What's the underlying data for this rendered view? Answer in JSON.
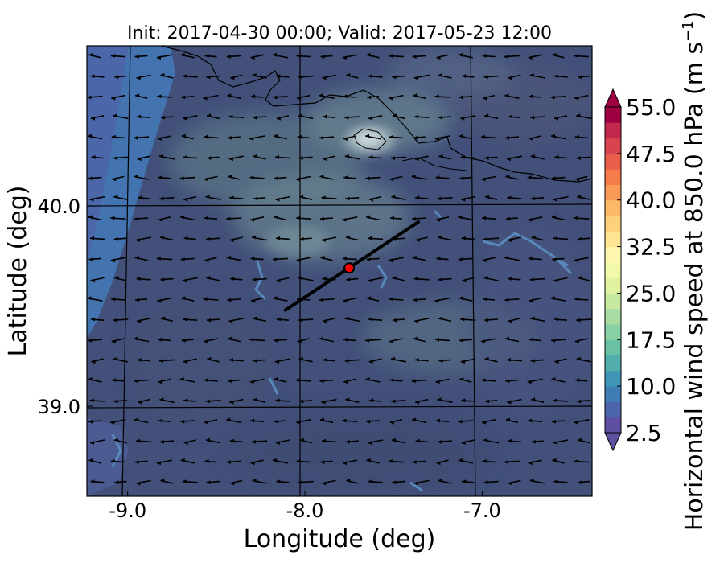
{
  "title": "Init: 2017-04-30 00:00; Valid: 2017-05-23 12:00",
  "xlabel": "Longitude (deg)",
  "ylabel": "Latitude (deg)",
  "x_ticks": [
    {
      "label": "-9.0",
      "value": -9.0
    },
    {
      "label": "-8.0",
      "value": -8.0
    },
    {
      "label": "-7.0",
      "value": -7.0
    }
  ],
  "y_ticks": [
    {
      "label": "40.0",
      "value": 40.0
    },
    {
      "label": "39.0",
      "value": 39.0
    }
  ],
  "map_extent": {
    "lon": [
      -9.23,
      -6.38
    ],
    "lat": [
      38.55,
      40.8
    ]
  },
  "cross_section_line": {
    "start": {
      "lon": -8.11,
      "lat": 39.48
    },
    "end": {
      "lon": -7.36,
      "lat": 39.92
    }
  },
  "marker": {
    "lon": -7.75,
    "lat": 39.69,
    "color": "#ff0000"
  },
  "colorbar": {
    "label": "Horizontal wind speed at 850.0 hPa (m s",
    "label_sup": "−1",
    "label_end": ")",
    "min": 2.5,
    "max": 55.0,
    "step": 2.5,
    "tick_labels": [
      "2.5",
      "10.0",
      "17.5",
      "25.0",
      "32.5",
      "40.0",
      "47.5",
      "55.0"
    ],
    "extend": "both",
    "colormap": "Spectral_r"
  },
  "wind_field": {
    "dominant_direction": "from east",
    "arrow_color": "#000000"
  }
}
